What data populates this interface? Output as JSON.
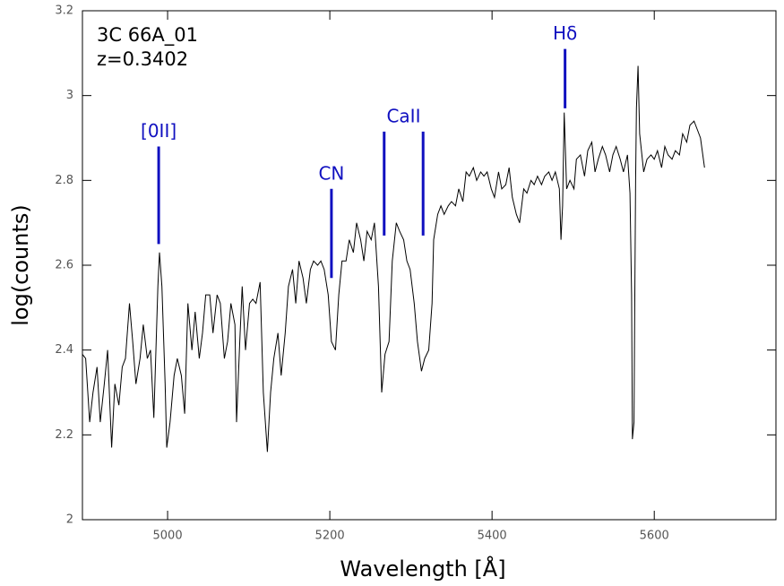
{
  "chart_data": {
    "type": "line",
    "xlabel": "Wavelength [Å]",
    "ylabel": "log(counts)",
    "texts": [
      "3C 66A_01",
      "z=0.3402"
    ],
    "color": "#000000",
    "annotation_color": "#1010c0",
    "xlim": [
      4895,
      5750
    ],
    "xticks": [
      5000,
      5200,
      5400,
      5600
    ],
    "ylim": [
      2,
      3.2
    ],
    "yticks": [
      2,
      2.2,
      2.4,
      2.6,
      2.8,
      3,
      3.2
    ],
    "annotations": [
      {
        "label": "[0II]",
        "x": [
          4989
        ],
        "y_start": 2.65,
        "y_end": 2.88
      },
      {
        "label": "CN",
        "x": [
          5202
        ],
        "y_start": 2.57,
        "y_end": 2.78
      },
      {
        "label": "CaII",
        "x": [
          5267,
          5315
        ],
        "y_start": 2.67,
        "y_end": 2.915
      },
      {
        "label": "Hδ",
        "x": [
          5490
        ],
        "y_start": 2.97,
        "y_end": 3.11
      }
    ],
    "x": [
      4895,
      4899,
      4904,
      4908,
      4913,
      4917,
      4922,
      4926,
      4931,
      4935,
      4940,
      4944,
      4948,
      4953,
      4957,
      4961,
      4966,
      4970,
      4975,
      4979,
      4983,
      4988,
      4990,
      4993,
      4997,
      4999,
      5003,
      5008,
      5012,
      5017,
      5021,
      5025,
      5030,
      5034,
      5039,
      5043,
      5047,
      5052,
      5056,
      5061,
      5065,
      5070,
      5074,
      5078,
      5083,
      5085,
      5089,
      5092,
      5096,
      5101,
      5105,
      5109,
      5114,
      5118,
      5123,
      5127,
      5131,
      5136,
      5140,
      5145,
      5149,
      5154,
      5158,
      5162,
      5167,
      5171,
      5176,
      5180,
      5185,
      5189,
      5193,
      5198,
      5202,
      5207,
      5211,
      5215,
      5220,
      5224,
      5229,
      5233,
      5238,
      5242,
      5246,
      5251,
      5255,
      5260,
      5264,
      5268,
      5273,
      5277,
      5282,
      5286,
      5291,
      5295,
      5299,
      5304,
      5308,
      5313,
      5317,
      5322,
      5326,
      5328,
      5333,
      5337,
      5341,
      5346,
      5350,
      5355,
      5359,
      5364,
      5368,
      5372,
      5377,
      5381,
      5386,
      5390,
      5394,
      5399,
      5403,
      5408,
      5412,
      5417,
      5421,
      5425,
      5430,
      5434,
      5439,
      5443,
      5448,
      5452,
      5456,
      5461,
      5465,
      5470,
      5474,
      5478,
      5483,
      5485,
      5487,
      5489,
      5492,
      5496,
      5501,
      5504,
      5509,
      5514,
      5518,
      5523,
      5527,
      5531,
      5536,
      5540,
      5545,
      5549,
      5553,
      5558,
      5562,
      5567,
      5570,
      5572,
      5573,
      5575,
      5576,
      5577,
      5578,
      5580,
      5582,
      5587,
      5591,
      5596,
      5600,
      5604,
      5609,
      5613,
      5617,
      5622,
      5626,
      5631,
      5635,
      5640,
      5644,
      5649,
      5653,
      5657,
      5662
    ],
    "values": [
      2.39,
      2.38,
      2.23,
      2.3,
      2.36,
      2.23,
      2.32,
      2.4,
      2.17,
      2.32,
      2.27,
      2.36,
      2.38,
      2.51,
      2.42,
      2.32,
      2.38,
      2.46,
      2.38,
      2.4,
      2.24,
      2.55,
      2.63,
      2.55,
      2.32,
      2.17,
      2.23,
      2.34,
      2.38,
      2.34,
      2.25,
      2.51,
      2.4,
      2.49,
      2.38,
      2.44,
      2.53,
      2.53,
      2.44,
      2.53,
      2.51,
      2.38,
      2.42,
      2.51,
      2.46,
      2.23,
      2.42,
      2.55,
      2.4,
      2.51,
      2.52,
      2.51,
      2.56,
      2.3,
      2.16,
      2.3,
      2.38,
      2.44,
      2.34,
      2.44,
      2.55,
      2.59,
      2.51,
      2.61,
      2.57,
      2.51,
      2.59,
      2.61,
      2.6,
      2.61,
      2.59,
      2.53,
      2.42,
      2.4,
      2.53,
      2.61,
      2.61,
      2.66,
      2.63,
      2.7,
      2.66,
      2.61,
      2.68,
      2.66,
      2.7,
      2.55,
      2.3,
      2.39,
      2.42,
      2.61,
      2.7,
      2.68,
      2.66,
      2.61,
      2.59,
      2.51,
      2.42,
      2.35,
      2.38,
      2.4,
      2.51,
      2.66,
      2.72,
      2.74,
      2.72,
      2.74,
      2.75,
      2.74,
      2.78,
      2.75,
      2.82,
      2.81,
      2.83,
      2.8,
      2.82,
      2.81,
      2.82,
      2.78,
      2.76,
      2.82,
      2.78,
      2.79,
      2.83,
      2.76,
      2.72,
      2.7,
      2.78,
      2.77,
      2.8,
      2.79,
      2.81,
      2.79,
      2.81,
      2.82,
      2.8,
      2.82,
      2.78,
      2.66,
      2.74,
      2.96,
      2.78,
      2.8,
      2.78,
      2.85,
      2.86,
      2.81,
      2.87,
      2.89,
      2.82,
      2.85,
      2.88,
      2.86,
      2.82,
      2.86,
      2.88,
      2.85,
      2.82,
      2.86,
      2.77,
      2.53,
      2.19,
      2.23,
      2.53,
      2.8,
      2.97,
      3.07,
      2.91,
      2.82,
      2.85,
      2.86,
      2.85,
      2.87,
      2.83,
      2.88,
      2.86,
      2.85,
      2.87,
      2.86,
      2.91,
      2.89,
      2.93,
      2.94,
      2.92,
      2.9,
      2.83
    ]
  }
}
